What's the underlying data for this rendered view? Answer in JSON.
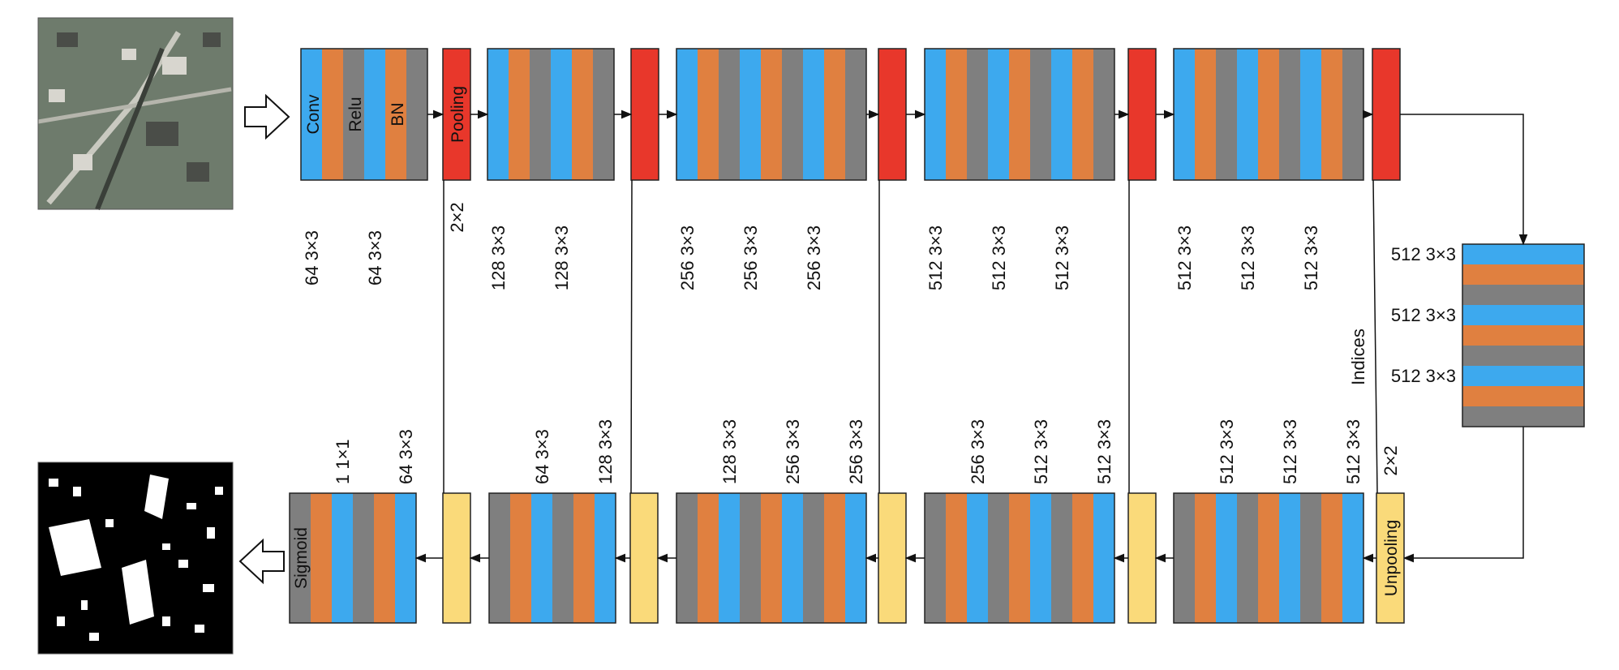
{
  "colors": {
    "conv": "#3DA9EE",
    "relu": "#E08040",
    "bn": "#7F7F7F",
    "pool": "#E8372B",
    "unpool": "#FADA7A",
    "input_bg": "#6E7B6C",
    "output_bg": "#000000",
    "line": "#111111"
  },
  "icons": {
    "input_arrow": "hollow-right-arrow-icon",
    "output_arrow": "hollow-left-arrow-icon",
    "input_image": "aerial-image",
    "output_image": "building-mask-image"
  },
  "encoder": {
    "strip_labels": {
      "conv": "Conv",
      "relu": "Relu",
      "bn": "BN"
    },
    "pool_label": "Pooling",
    "pool_size": "2×2",
    "blocks": [
      {
        "labels": [
          "64 3×3",
          "64 3×3"
        ]
      },
      {
        "labels": [
          "128 3×3",
          "128 3×3"
        ]
      },
      {
        "labels": [
          "256 3×3",
          "256 3×3",
          "256 3×3"
        ]
      },
      {
        "labels": [
          "512 3×3",
          "512 3×3",
          "512 3×3"
        ]
      },
      {
        "labels": [
          "512 3×3",
          "512 3×3",
          "512 3×3"
        ]
      }
    ]
  },
  "bridge": {
    "labels": [
      "512 3×3",
      "512 3×3",
      "512 3×3"
    ],
    "indices_label": "Indices"
  },
  "decoder": {
    "unpool_label": "Unpooling",
    "unpool_size": "2×2",
    "sigmoid_label": "Sigmoid",
    "blocks": [
      {
        "labels": [
          "512 3×3",
          "512 3×3",
          "512 3×3"
        ]
      },
      {
        "labels": [
          "256 3×3",
          "512 3×3",
          "512 3×3"
        ]
      },
      {
        "labels": [
          "128 3×3",
          "256 3×3",
          "256 3×3"
        ]
      },
      {
        "labels": [
          "64 3×3",
          "128 3×3"
        ]
      },
      {
        "labels": [
          "1 1×1",
          "64 3×3"
        ]
      }
    ]
  }
}
